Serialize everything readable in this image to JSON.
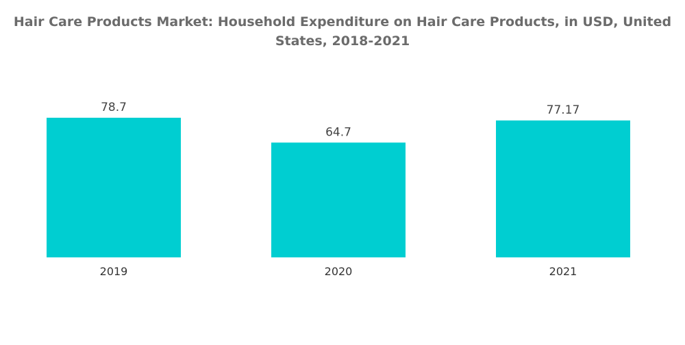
{
  "chart_data": {
    "type": "bar",
    "title": "Hair Care Products Market: Household Expenditure on Hair Care Products, in USD, United States, 2018-2021",
    "categories": [
      "2019",
      "2020",
      "2021"
    ],
    "values": [
      78.7,
      64.7,
      77.17
    ],
    "value_labels": [
      "78.7",
      "64.7",
      "77.17"
    ],
    "xlabel": "",
    "ylabel": "",
    "ylim": [
      0,
      78.7
    ],
    "grid": false,
    "legend": "none",
    "bar_color": "#00ced1"
  }
}
